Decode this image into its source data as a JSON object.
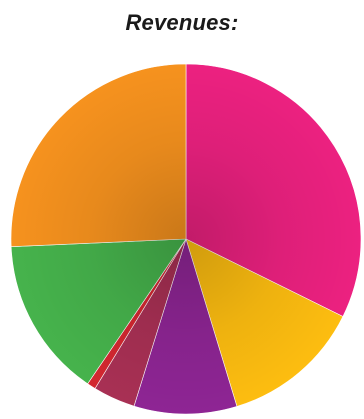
{
  "chart_data": {
    "type": "pie",
    "title": "Revenues:",
    "slices": [
      {
        "value": 32.3,
        "color": "#EC2180"
      },
      {
        "value": 13.0,
        "color": "#FDBD10"
      },
      {
        "value": 9.5,
        "color": "#8E2594"
      },
      {
        "value": 3.9,
        "color": "#A83054"
      },
      {
        "value": 0.8,
        "color": "#D32730"
      },
      {
        "value": 14.8,
        "color": "#46B34C"
      },
      {
        "value": 25.7,
        "color": "#F6921E"
      }
    ],
    "legend": "none",
    "labels_shown": false
  }
}
